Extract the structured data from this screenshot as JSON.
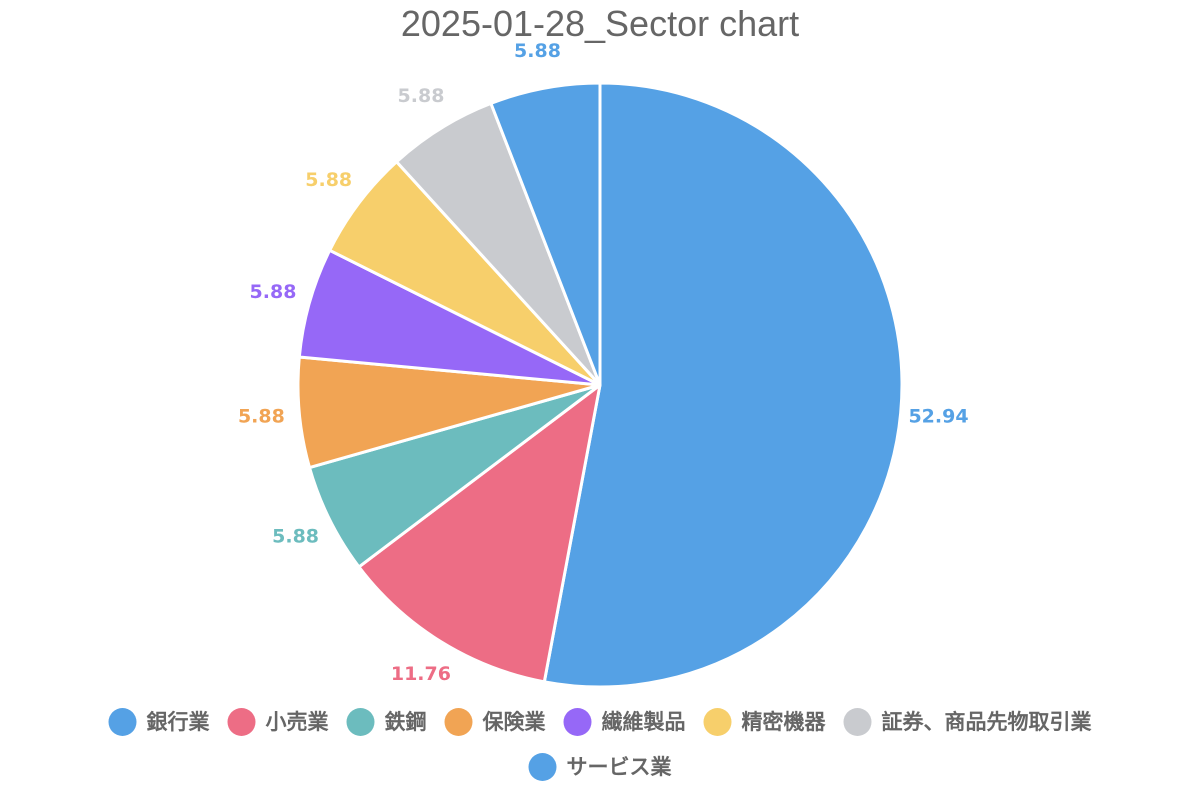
{
  "chart_data": {
    "type": "pie",
    "title": "2025-01-28_Sector chart",
    "categories": [
      "銀行業",
      "小売業",
      "鉄鋼",
      "保険業",
      "繊維製品",
      "精密機器",
      "証券、商品先物取引業",
      "サービス業"
    ],
    "values": [
      52.94,
      11.76,
      5.88,
      5.88,
      5.88,
      5.88,
      5.88,
      5.88
    ],
    "value_labels": [
      "52.94",
      "11.76",
      "5.88",
      "5.88",
      "5.88",
      "5.88",
      "5.88",
      "5.88"
    ],
    "colors": [
      "#55a1e5",
      "#ed6d85",
      "#6cbcbe",
      "#f1a454",
      "#9668f7",
      "#f7cf6b",
      "#c9cbcf",
      "#55a1e5"
    ],
    "legend_position": "bottom",
    "start": "top, clockwise"
  }
}
